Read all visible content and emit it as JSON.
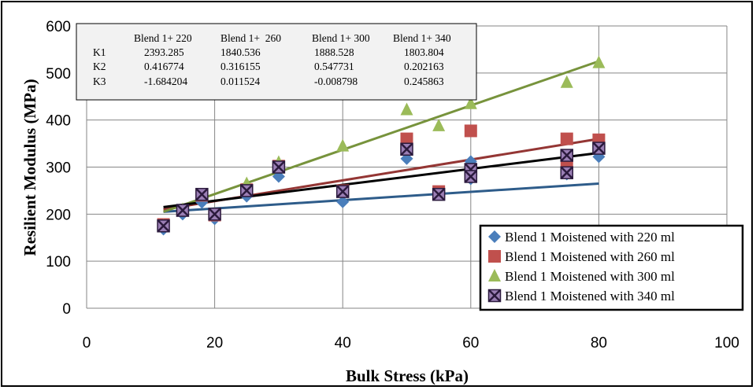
{
  "chart_data": {
    "type": "scatter",
    "title": "",
    "xlabel": "Bulk Stress (kPa)",
    "ylabel": "Resilient Modulus (MPa)",
    "xlim": [
      0,
      100
    ],
    "ylim": [
      0,
      600
    ],
    "xticks": [
      0,
      20,
      40,
      60,
      80,
      100
    ],
    "yticks": [
      0,
      100,
      200,
      300,
      400,
      500,
      600
    ],
    "grid": true,
    "legend_position": "bottom-right",
    "series": [
      {
        "name": "Blend 1 Moistened with 220 ml",
        "marker": "diamond",
        "color": "#4A7EBB",
        "trend_color": "#2E5C8A",
        "points": [
          [
            12,
            168
          ],
          [
            15,
            200
          ],
          [
            18,
            225
          ],
          [
            20,
            190
          ],
          [
            25,
            238
          ],
          [
            30,
            280
          ],
          [
            40,
            226
          ],
          [
            50,
            318
          ],
          [
            55,
            243
          ],
          [
            60,
            312
          ],
          [
            60,
            275
          ],
          [
            75,
            285
          ],
          [
            80,
            322
          ]
        ],
        "trend": [
          [
            12,
            205
          ],
          [
            80,
            265
          ]
        ]
      },
      {
        "name": "Blend 1 Moistened with 260 ml",
        "marker": "square",
        "color": "#C0504D",
        "trend_color": "#943634",
        "points": [
          [
            12,
            178
          ],
          [
            15,
            208
          ],
          [
            18,
            240
          ],
          [
            20,
            198
          ],
          [
            25,
            252
          ],
          [
            30,
            302
          ],
          [
            40,
            250
          ],
          [
            50,
            360
          ],
          [
            55,
            248
          ],
          [
            60,
            377
          ],
          [
            60,
            282
          ],
          [
            75,
            360
          ],
          [
            75,
            300
          ],
          [
            80,
            358
          ]
        ],
        "trend": [
          [
            12,
            210
          ],
          [
            80,
            360
          ]
        ]
      },
      {
        "name": "Blend 1 Moistened with 300 ml",
        "marker": "triangle",
        "color": "#9BBB59",
        "trend_color": "#77933C",
        "points": [
          [
            12,
            175
          ],
          [
            15,
            210
          ],
          [
            18,
            240
          ],
          [
            20,
            200
          ],
          [
            25,
            265
          ],
          [
            30,
            310
          ],
          [
            40,
            345
          ],
          [
            50,
            422
          ],
          [
            55,
            388
          ],
          [
            60,
            435
          ],
          [
            75,
            480
          ],
          [
            80,
            522
          ]
        ],
        "trend": [
          [
            12,
            205
          ],
          [
            80,
            525
          ]
        ]
      },
      {
        "name": "Blend 1 Moistened with 340 ml",
        "marker": "xsquare",
        "color": "#2B1A3D",
        "trend_color": "#000000",
        "points": [
          [
            12,
            175
          ],
          [
            15,
            208
          ],
          [
            18,
            242
          ],
          [
            20,
            200
          ],
          [
            25,
            250
          ],
          [
            30,
            300
          ],
          [
            40,
            248
          ],
          [
            50,
            338
          ],
          [
            55,
            242
          ],
          [
            60,
            295
          ],
          [
            60,
            280
          ],
          [
            75,
            325
          ],
          [
            75,
            288
          ],
          [
            80,
            340
          ]
        ],
        "trend": [
          [
            12,
            215
          ],
          [
            80,
            330
          ]
        ]
      }
    ],
    "table": {
      "headers": [
        "",
        "Blend 1+ 220",
        "Blend 1+  260",
        "Blend 1+ 300",
        "Blend 1+ 340"
      ],
      "rows": [
        [
          "K1",
          "2393.285",
          "1840.536",
          "1888.528",
          "1803.804"
        ],
        [
          "K2",
          "0.416774",
          "0.316155",
          "0.547731",
          "0.202163"
        ],
        [
          "K3",
          "-1.684204",
          "0.011524",
          "-0.008798",
          "0.245863"
        ]
      ]
    }
  }
}
